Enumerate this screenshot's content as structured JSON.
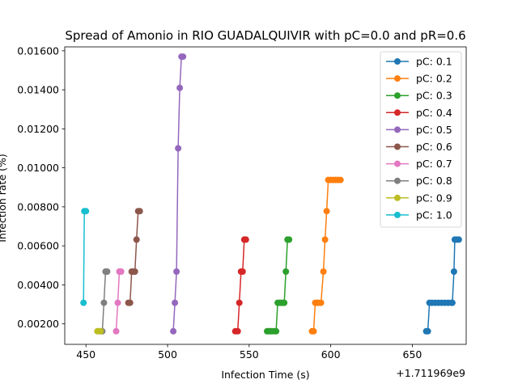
{
  "chart_data": {
    "type": "line",
    "title": "Spread of Amonio in RIO GUADALQUIVIR with pC=0.0 and pR=0.6",
    "xlabel": "Infection Time (s)",
    "ylabel": "Infection rate (%)",
    "x_offset_label": "+1.711969e9",
    "xlim": [
      437,
      683
    ],
    "ylim": [
      0.00095,
      0.0162
    ],
    "x_ticks": [
      {
        "value": 450,
        "label": "450"
      },
      {
        "value": 500,
        "label": "500"
      },
      {
        "value": 550,
        "label": "550"
      },
      {
        "value": 600,
        "label": "600"
      },
      {
        "value": 650,
        "label": "650"
      }
    ],
    "y_ticks": [
      {
        "value": 0.002,
        "label": "0.00200"
      },
      {
        "value": 0.004,
        "label": "0.00400"
      },
      {
        "value": 0.006,
        "label": "0.00600"
      },
      {
        "value": 0.008,
        "label": "0.00800"
      },
      {
        "value": 0.01,
        "label": "0.01000"
      },
      {
        "value": 0.012,
        "label": "0.01200"
      },
      {
        "value": 0.014,
        "label": "0.01400"
      },
      {
        "value": 0.016,
        "label": "0.01600"
      }
    ],
    "legend_position": "top-right",
    "grid": false,
    "series": [
      {
        "name": "pC: 0.1",
        "color": "#1f77b4",
        "x": [
          658.5,
          659.5,
          660.5,
          662,
          664,
          666,
          668,
          670,
          672,
          674,
          674.5,
          675.5,
          676,
          677,
          678.5
        ],
        "y": [
          0.00162,
          0.00162,
          0.00308,
          0.00308,
          0.00308,
          0.00308,
          0.00308,
          0.00308,
          0.00308,
          0.00308,
          0.00308,
          0.00468,
          0.00632,
          0.00632,
          0.00632
        ]
      },
      {
        "name": "pC: 0.2",
        "color": "#ff7f0e",
        "x": [
          588.5,
          589.5,
          590.5,
          591.5,
          592.5,
          594,
          595.5,
          596.5,
          597.5,
          598.5,
          600,
          601.5,
          603,
          604.5,
          606
        ],
        "y": [
          0.00162,
          0.00162,
          0.00308,
          0.00308,
          0.00308,
          0.00308,
          0.00468,
          0.00632,
          0.00778,
          0.00938,
          0.00938,
          0.00938,
          0.00938,
          0.00938,
          0.00938
        ]
      },
      {
        "name": "pC: 0.3",
        "color": "#2ca02c",
        "x": [
          561,
          562,
          563,
          564,
          565.5,
          566.5,
          567.5,
          568.5,
          569.5,
          570.5,
          571.5,
          572.5,
          573.5,
          574.5
        ],
        "y": [
          0.00162,
          0.00162,
          0.00162,
          0.00162,
          0.00162,
          0.00162,
          0.00308,
          0.00308,
          0.00308,
          0.00308,
          0.00308,
          0.00468,
          0.00632,
          0.00632
        ]
      },
      {
        "name": "pC: 0.4",
        "color": "#d62728",
        "x": [
          541.5,
          543,
          544,
          545,
          546,
          547,
          548
        ],
        "y": [
          0.00162,
          0.00162,
          0.00308,
          0.00468,
          0.00468,
          0.00632,
          0.00632
        ]
      },
      {
        "name": "pC: 0.5",
        "color": "#9467bd",
        "x": [
          503.5,
          504.5,
          505.5,
          506.5,
          507.5,
          508.5,
          509.5
        ],
        "y": [
          0.00162,
          0.00308,
          0.00468,
          0.011,
          0.0141,
          0.0157,
          0.0157
        ]
      },
      {
        "name": "pC: 0.6",
        "color": "#8c564b",
        "x": [
          476,
          477,
          478,
          479,
          480,
          481,
          482,
          483
        ],
        "y": [
          0.00308,
          0.00308,
          0.00468,
          0.00468,
          0.00468,
          0.00632,
          0.00778,
          0.00778
        ]
      },
      {
        "name": "pC: 0.7",
        "color": "#e377c2",
        "x": [
          468.5,
          469.5,
          470.5,
          471.5
        ],
        "y": [
          0.00162,
          0.00308,
          0.00468,
          0.00468
        ]
      },
      {
        "name": "pC: 0.8",
        "color": "#7f7f7f",
        "x": [
          460,
          461,
          462,
          463
        ],
        "y": [
          0.00162,
          0.00308,
          0.00468,
          0.00468
        ]
      },
      {
        "name": "pC: 0.9",
        "color": "#bcbd22",
        "x": [
          457,
          458,
          459
        ],
        "y": [
          0.00162,
          0.00162,
          0.00162
        ]
      },
      {
        "name": "pC: 1.0",
        "color": "#17becf",
        "x": [
          448.5,
          449,
          450
        ],
        "y": [
          0.00308,
          0.00778,
          0.00778
        ]
      }
    ]
  }
}
